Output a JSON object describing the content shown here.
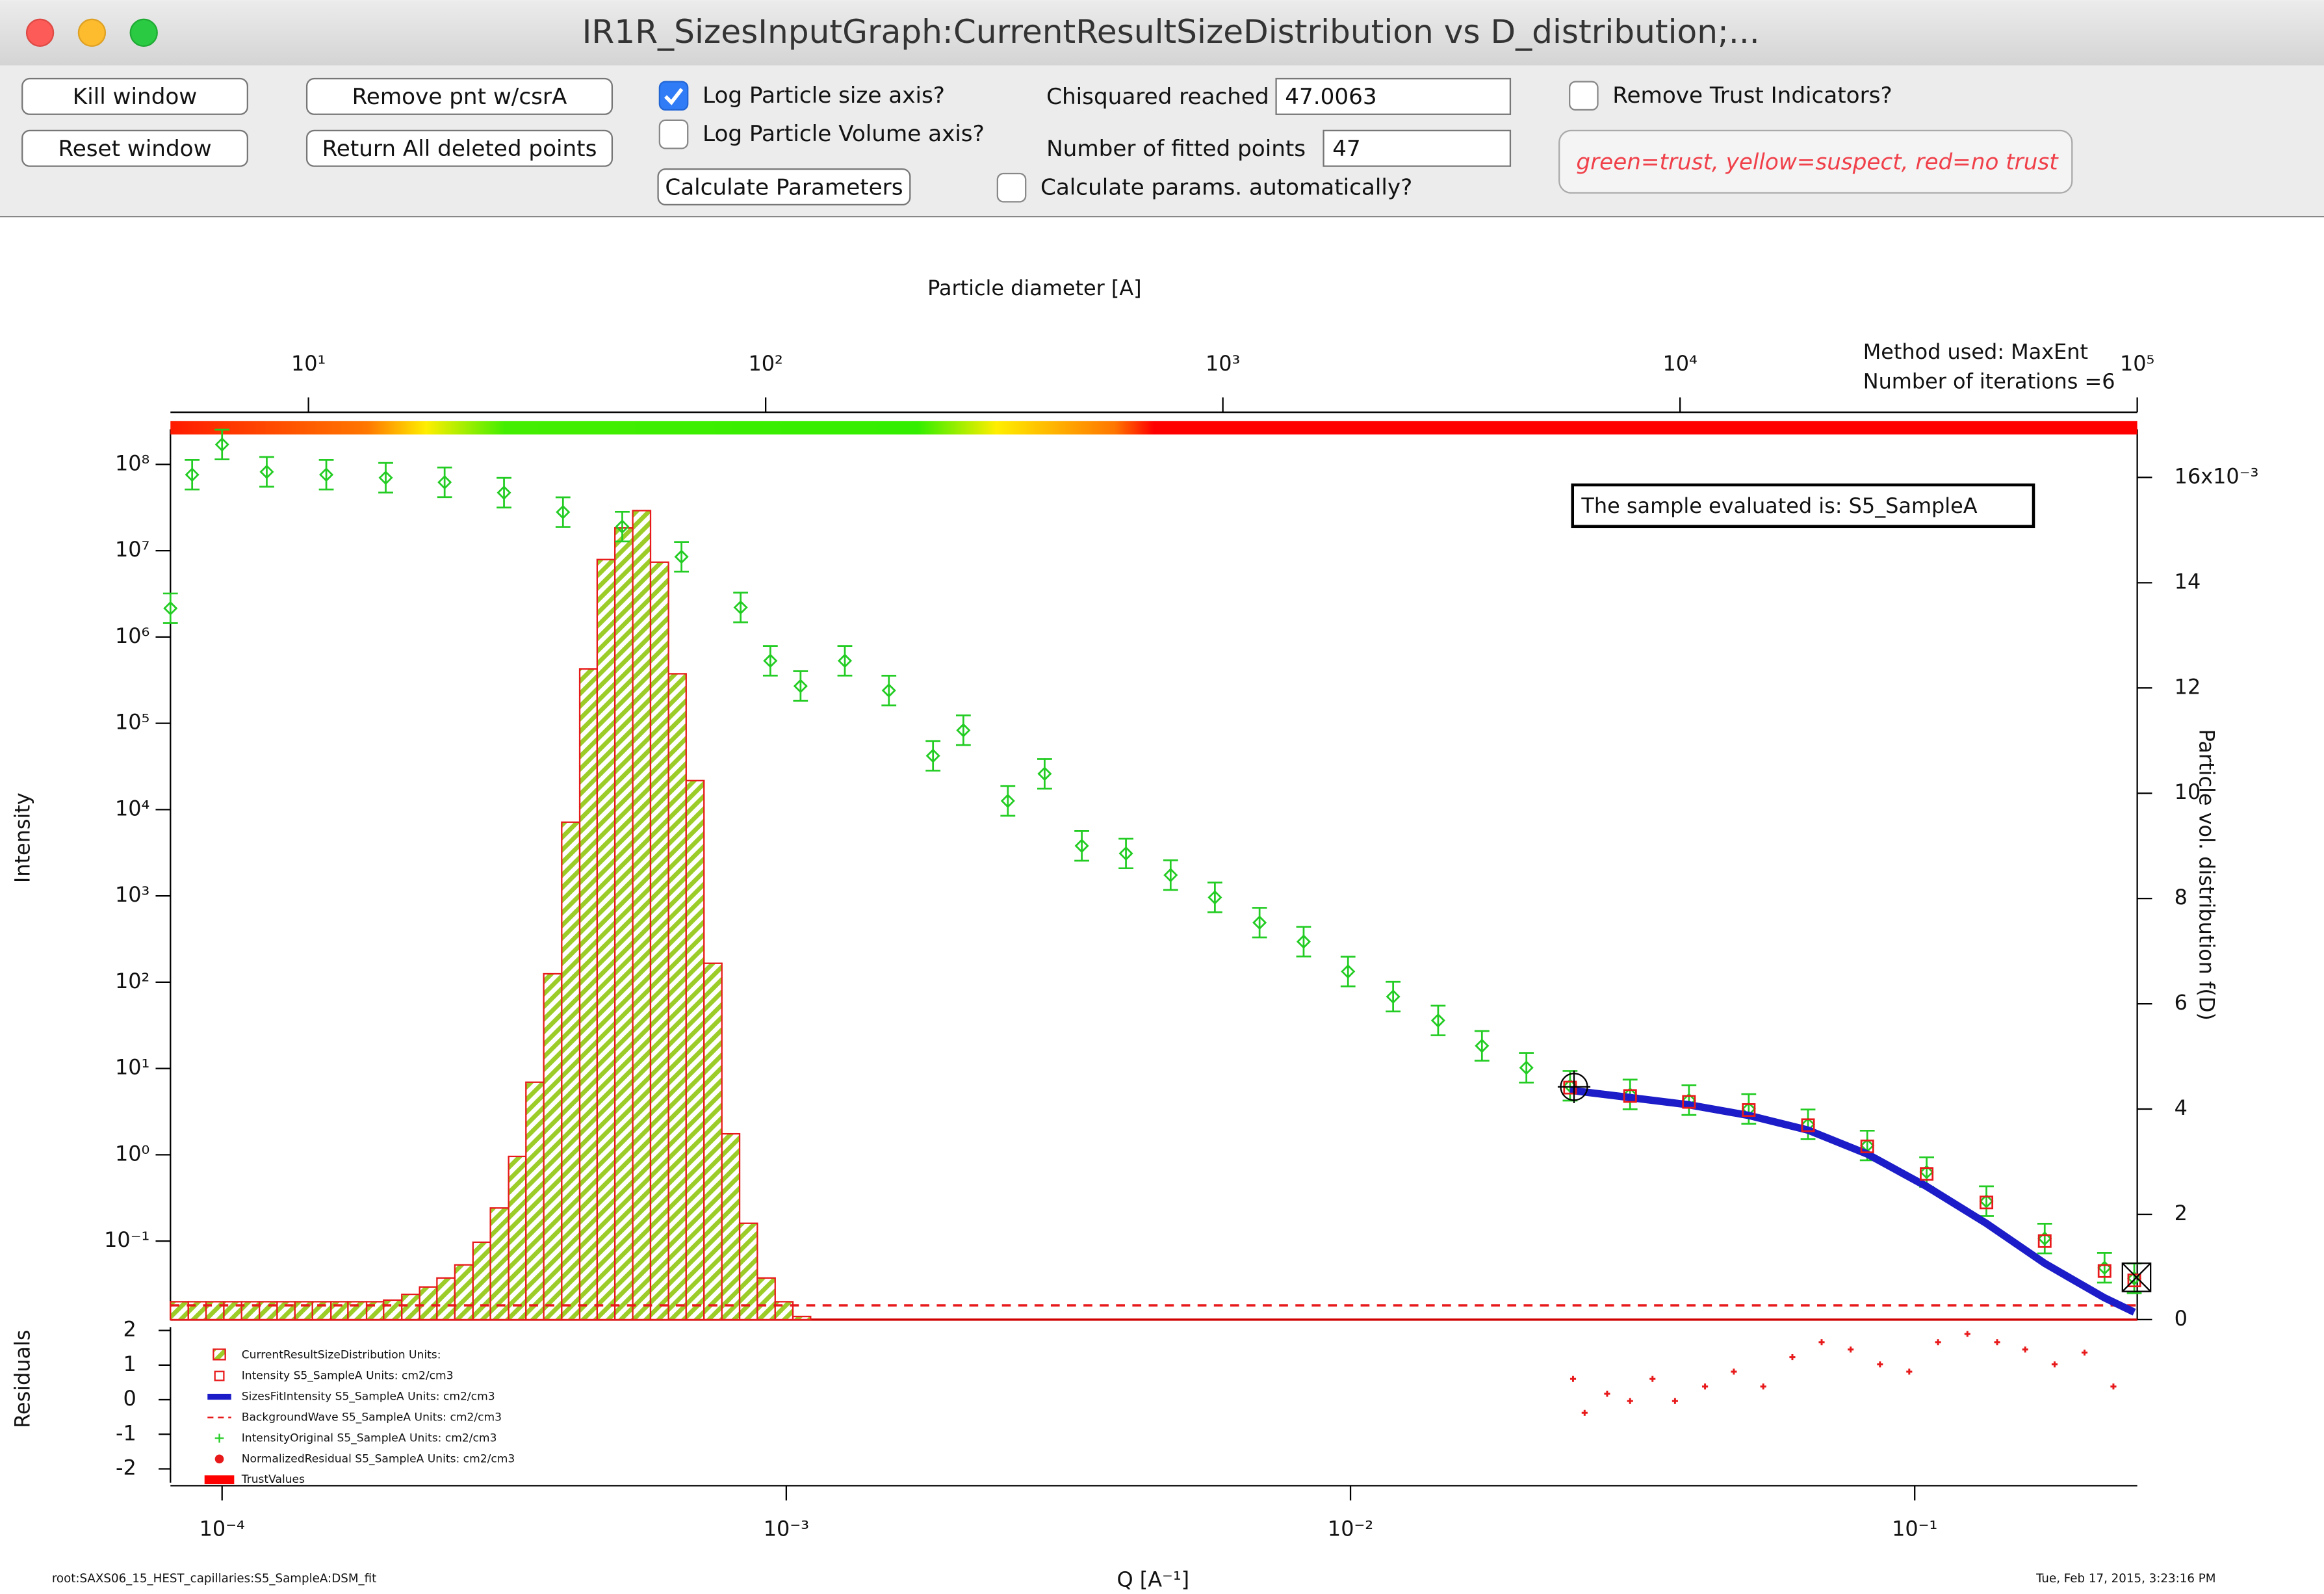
{
  "window": {
    "title": "IR1R_SizesInputGraph:CurrentResultSizeDistribution vs D_distribution;...",
    "buttons": [
      "Kill window",
      "Reset window",
      "Remove pnt w/csrA",
      "Return All deleted points",
      "Calculate Parameters"
    ],
    "checkboxes": [
      {
        "label": "Log Particle size axis?",
        "checked": true
      },
      {
        "label": "Log Particle Volume axis?",
        "checked": false
      },
      {
        "label": "Calculate params. automatically?",
        "checked": false
      },
      {
        "label": "Remove Trust Indicators?",
        "checked": false
      }
    ],
    "fields": [
      {
        "label": "Chisquared reached",
        "value": 47.0063
      },
      {
        "label": "Number of fitted points",
        "value": 47
      }
    ],
    "trust_legend": "green=trust, yellow=suspect, red=no trust"
  },
  "chart_data": {
    "type": "combo",
    "x2label": "Particle diameter [A]",
    "xlabel": "Q [A⁻¹]",
    "ylabel": "Intensity",
    "y2label": "Particle vol. distribution f(D)",
    "residual_ylabel": "Residuals",
    "annotations": [
      "Method used: MaxEnt",
      "Number of iterations =6"
    ],
    "sample_box": "The sample evaluated is:  S5_SampleA",
    "footer_left": "root:SAXS06_15_HEST_capillaries:S5_SampleA:DSM_fit",
    "footer_right": "Tue, Feb 17, 2015, 3:23:16 PM",
    "xscale": "log",
    "xlim": [
      8.1e-05,
      0.248
    ],
    "xticks": [
      {
        "value": 0.0001,
        "label": "10⁻⁴"
      },
      {
        "value": 0.001,
        "label": "10⁻³"
      },
      {
        "value": 0.01,
        "label": "10⁻²"
      },
      {
        "value": 0.1,
        "label": "10⁻¹"
      }
    ],
    "x2scale": "log",
    "x2lim": [
      4.99,
      100000
    ],
    "x2ticks": [
      {
        "value": 10,
        "label": "10¹"
      },
      {
        "value": 100,
        "label": "10²"
      },
      {
        "value": 1000,
        "label": "10³"
      },
      {
        "value": 10000,
        "label": "10⁴"
      },
      {
        "value": 100000,
        "label": "10⁵"
      }
    ],
    "yscale": "log",
    "ylim": [
      0.0123,
      250000000
    ],
    "yticks": [
      {
        "value": 0.1,
        "label": "10⁻¹"
      },
      {
        "value": 1,
        "label": "10⁰"
      },
      {
        "value": 10,
        "label": "10¹"
      },
      {
        "value": 100,
        "label": "10²"
      },
      {
        "value": 1000,
        "label": "10³"
      },
      {
        "value": 10000,
        "label": "10⁴"
      },
      {
        "value": 100000,
        "label": "10⁵"
      },
      {
        "value": 1000000,
        "label": "10⁶"
      },
      {
        "value": 10000000,
        "label": "10⁷"
      },
      {
        "value": 100000000,
        "label": "10⁸"
      }
    ],
    "y2lim": [
      0,
      0.0169
    ],
    "y2ticks": [
      {
        "value": 0,
        "label": "0"
      },
      {
        "value": 0.002,
        "label": "2"
      },
      {
        "value": 0.004,
        "label": "4"
      },
      {
        "value": 0.006,
        "label": "6"
      },
      {
        "value": 0.008,
        "label": "8"
      },
      {
        "value": 0.01,
        "label": "10"
      },
      {
        "value": 0.012,
        "label": "12"
      },
      {
        "value": 0.014,
        "label": "14"
      },
      {
        "value": 0.016,
        "label": "16x10⁻³"
      }
    ],
    "residual_ylim": [
      -2.4,
      2.1
    ],
    "residual_yticks": [
      2,
      1,
      0,
      -1,
      -2
    ],
    "series": [
      {
        "name": "CurrentResultSizeDistribution   Units:",
        "kind": "histogram",
        "axis": "y2",
        "color": "#e8191a",
        "fill": "#9ccc28",
        "bins": [
          4.99,
          5.46,
          5.97,
          6.53,
          7.14,
          7.81,
          8.54,
          9.34,
          10.2,
          11.2,
          12.2,
          13.4,
          14.6,
          16.0,
          17.5,
          19.1,
          20.9,
          22.9,
          25.0,
          27.4,
          29.9,
          32.7,
          35.8,
          39.2,
          42.8,
          46.8,
          51.2,
          56.0,
          61.3,
          67.0,
          73.3,
          80.2,
          87.7,
          95.9,
          104.9,
          114.7,
          125.4
        ],
        "values": [
          0.00034,
          0.00034,
          0.00034,
          0.00034,
          0.00034,
          0.00034,
          0.00034,
          0.00034,
          0.00034,
          0.00034,
          0.00034,
          0.00034,
          0.00037,
          0.00048,
          0.00062,
          0.00079,
          0.00104,
          0.00147,
          0.00212,
          0.0031,
          0.00451,
          0.00657,
          0.00945,
          0.01236,
          0.01444,
          0.01504,
          0.01537,
          0.01439,
          0.01227,
          0.01024,
          0.00677,
          0.00353,
          0.00183,
          0.00079,
          0.00034,
          6e-05
        ]
      },
      {
        "name": "Intensity   S5_SampleA   Units: cm2/cm3",
        "kind": "squares",
        "color": "#e8191a",
        "x": [
          0.0245,
          0.0313,
          0.0398,
          0.0508,
          0.0647,
          0.0824,
          0.105,
          0.134,
          0.17,
          0.217,
          0.245
        ],
        "values": [
          6.0,
          4.8,
          4.1,
          3.3,
          2.2,
          1.25,
          0.6,
          0.28,
          0.1,
          0.045,
          0.035
        ]
      },
      {
        "name": "SizesFitIntensity   S5_SampleA   Units: cm2/cm3",
        "kind": "line",
        "color": "#1c1cc8",
        "x": [
          0.0245,
          0.0313,
          0.0398,
          0.0508,
          0.0647,
          0.0824,
          0.105,
          0.134,
          0.17,
          0.217,
          0.245
        ],
        "values": [
          5.6,
          4.6,
          3.8,
          2.86,
          1.93,
          1.02,
          0.43,
          0.16,
          0.055,
          0.022,
          0.015
        ]
      },
      {
        "name": "BackgroundWave   S5_SampleA   Units: cm2/cm3",
        "kind": "dashed",
        "color": "#e8191a",
        "x": [
          8.1e-05,
          0.248
        ],
        "values": [
          0.018,
          0.018
        ]
      },
      {
        "name": "IntensityOriginal   S5_SampleA   Units: cm2/cm3",
        "kind": "plus",
        "color": "#22cc22",
        "x": [
          8.1e-05,
          8.85e-05,
          0.0001,
          0.00012,
          0.000153,
          0.000195,
          0.000248,
          0.000316,
          0.000402,
          0.000512,
          0.000652,
          0.00083,
          0.000937,
          0.00106,
          0.00127,
          0.00152,
          0.00182,
          0.00206,
          0.00247,
          0.00287,
          0.00334,
          0.004,
          0.0048,
          0.00575,
          0.0069,
          0.00826,
          0.0099,
          0.0119,
          0.0143,
          0.0171,
          0.0205,
          0.0245,
          0.0313,
          0.0398,
          0.0508,
          0.0647,
          0.0824,
          0.105,
          0.134,
          0.17,
          0.217,
          0.245
        ],
        "values": [
          2150000,
          76000000,
          170000000,
          82000000,
          76000000,
          70000000,
          62000000,
          47000000,
          28000000,
          19000000,
          8500000,
          2200000,
          530000,
          270000,
          530000,
          240000,
          42000,
          83000,
          12600,
          26000,
          3800,
          3100,
          1740,
          960,
          490,
          295,
          133,
          68,
          36,
          18.3,
          10.2,
          6.3,
          5.0,
          4.3,
          3.4,
          2.25,
          1.28,
          0.63,
          0.29,
          0.107,
          0.049,
          0.037
        ]
      },
      {
        "name": "NormalizedResidual   S5_SampleA   Units: cm2/cm3",
        "kind": "dots",
        "axis": "residual",
        "color": "#e8191a",
        "x": [
          0.0248,
          0.026,
          0.0285,
          0.0313,
          0.0343,
          0.0376,
          0.0425,
          0.0478,
          0.0539,
          0.0607,
          0.0684,
          0.077,
          0.0868,
          0.0978,
          0.11,
          0.124,
          0.14,
          0.157,
          0.177,
          0.2,
          0.225
        ],
        "values": [
          0.6,
          -0.38,
          0.17,
          -0.04,
          0.6,
          -0.04,
          0.38,
          0.81,
          0.38,
          1.23,
          1.66,
          1.45,
          1.02,
          0.81,
          1.66,
          1.9,
          1.66,
          1.45,
          1.02,
          1.36,
          0.38
        ]
      },
      {
        "name": "TrustValues",
        "kind": "trust",
        "color": "#ff0000"
      }
    ]
  }
}
